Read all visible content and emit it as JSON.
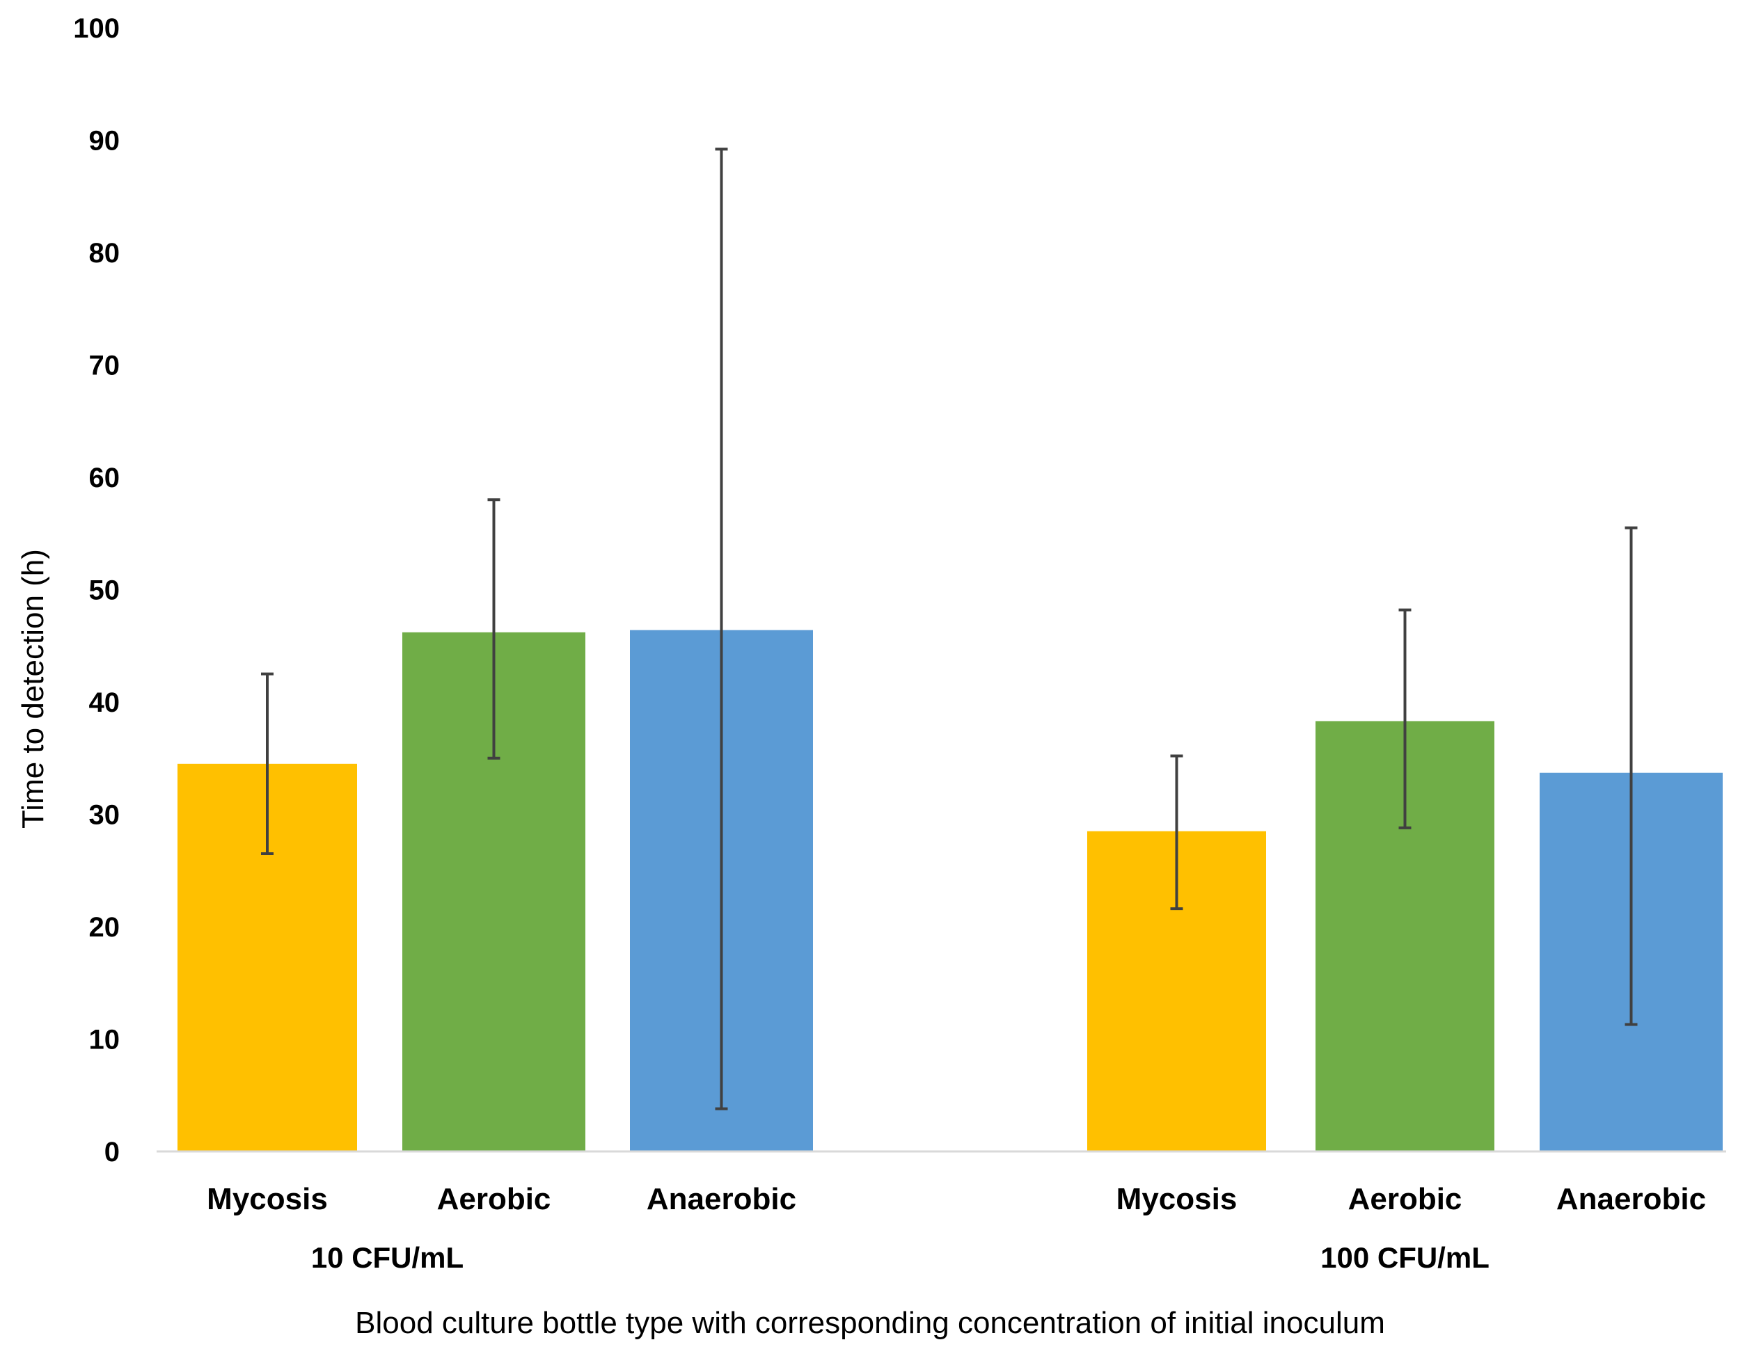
{
  "chart_data": {
    "type": "bar",
    "title": "",
    "ylabel": "Time to detection  (h)",
    "xlabel": "Blood culture bottle type with corresponding concentration of initial inoculum",
    "ylim": [
      0,
      100
    ],
    "yticks": [
      0,
      10,
      20,
      30,
      40,
      50,
      60,
      70,
      80,
      90,
      100
    ],
    "grid": false,
    "legend": "none",
    "groups": [
      {
        "label": "10 CFU/mL",
        "bars": [
          {
            "category": "Mycosis",
            "value": 34.5,
            "err_low": 26.5,
            "err_high": 42.5,
            "color": "#FFC000"
          },
          {
            "category": "Aerobic",
            "value": 46.2,
            "err_low": 35.0,
            "err_high": 58.0,
            "color": "#70AD47"
          },
          {
            "category": "Anaerobic",
            "value": 46.4,
            "err_low": 3.8,
            "err_high": 89.2,
            "color": "#5B9BD5"
          }
        ]
      },
      {
        "label": "100 CFU/mL",
        "bars": [
          {
            "category": "Mycosis",
            "value": 28.5,
            "err_low": 21.6,
            "err_high": 35.2,
            "color": "#FFC000"
          },
          {
            "category": "Aerobic",
            "value": 38.3,
            "err_low": 28.8,
            "err_high": 48.2,
            "color": "#70AD47"
          },
          {
            "category": "Anaerobic",
            "value": 33.7,
            "err_low": 11.3,
            "err_high": 55.5,
            "color": "#5B9BD5"
          }
        ]
      }
    ]
  }
}
